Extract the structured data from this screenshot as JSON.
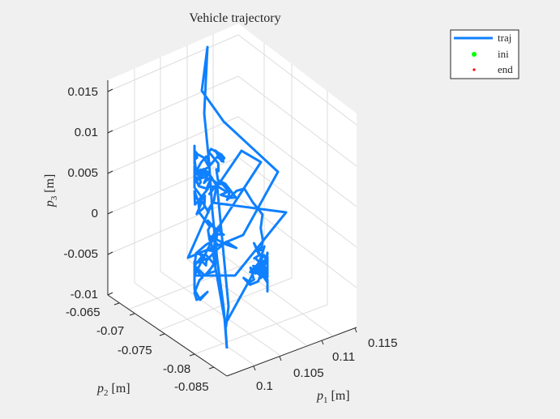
{
  "chart_data": {
    "type": "line3d",
    "title": "Vehicle trajectory",
    "xlabel": {
      "sym": "p",
      "sub": "1",
      "unit": "[m]"
    },
    "ylabel": {
      "sym": "p",
      "sub": "2",
      "unit": "[m]"
    },
    "zlabel": {
      "sym": "p",
      "sub": "3",
      "unit": "[m]"
    },
    "x_ticks": [
      "0.1",
      "0.105",
      "0.11",
      "0.115"
    ],
    "y_ticks": [
      "-0.065",
      "-0.07",
      "-0.075",
      "-0.08",
      "-0.085"
    ],
    "z_ticks": [
      "0.015",
      "0.01",
      "0.005",
      "0",
      "-0.005",
      "-0.01"
    ],
    "grid": true,
    "legend": {
      "position": "top-right",
      "entries": [
        {
          "label": "traj",
          "color": "#0f80ff",
          "marker": "line"
        },
        {
          "label": "ini",
          "color": "#00ff00",
          "marker": "dot"
        },
        {
          "label": "end",
          "color": "#ff0000",
          "marker": "dot"
        }
      ]
    },
    "series": [
      {
        "color": "#0f80ff",
        "values_approx": "dense random-walk trajectory, x≈0.098–0.109, y≈-0.083 to -0.067, z≈-0.010 to 0.018"
      }
    ]
  },
  "colors": {
    "background": "#f0f0f0",
    "axes": "#ffffff",
    "grid": "#dcdcdc",
    "traj": "#0f80ff"
  }
}
